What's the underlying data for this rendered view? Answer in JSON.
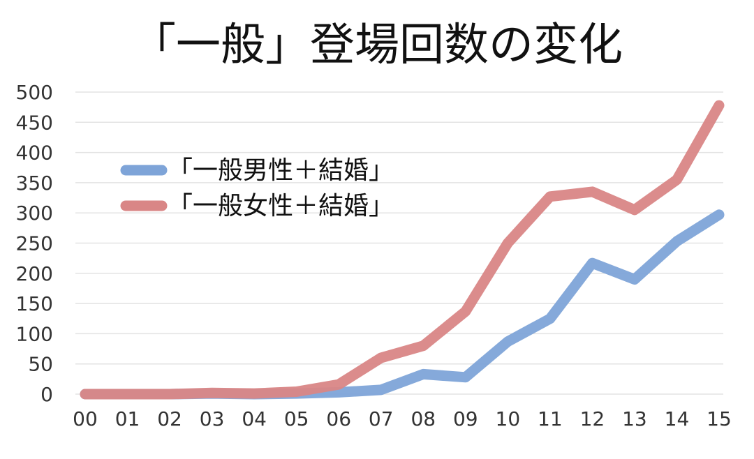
{
  "chart_data": {
    "type": "line",
    "title": "「一般」登場回数の変化",
    "xlabel": "",
    "ylabel": "",
    "categories": [
      "00",
      "01",
      "02",
      "03",
      "04",
      "05",
      "06",
      "07",
      "08",
      "09",
      "10",
      "11",
      "12",
      "13",
      "14",
      "15"
    ],
    "ylim": [
      0,
      500
    ],
    "yticks": [
      0,
      50,
      100,
      150,
      200,
      250,
      300,
      350,
      400,
      450,
      500
    ],
    "grid": true,
    "legend_position": "upper-left",
    "series": [
      {
        "name": "「一般男性＋結婚」",
        "color": "#7ea4d8",
        "values": [
          0,
          0,
          0,
          1,
          0,
          1,
          3,
          7,
          33,
          28,
          87,
          125,
          217,
          190,
          253,
          297
        ]
      },
      {
        "name": "「一般女性＋結婚」",
        "color": "#d98686",
        "values": [
          0,
          0,
          0,
          2,
          1,
          4,
          16,
          60,
          80,
          137,
          250,
          327,
          335,
          305,
          355,
          478
        ]
      }
    ]
  }
}
